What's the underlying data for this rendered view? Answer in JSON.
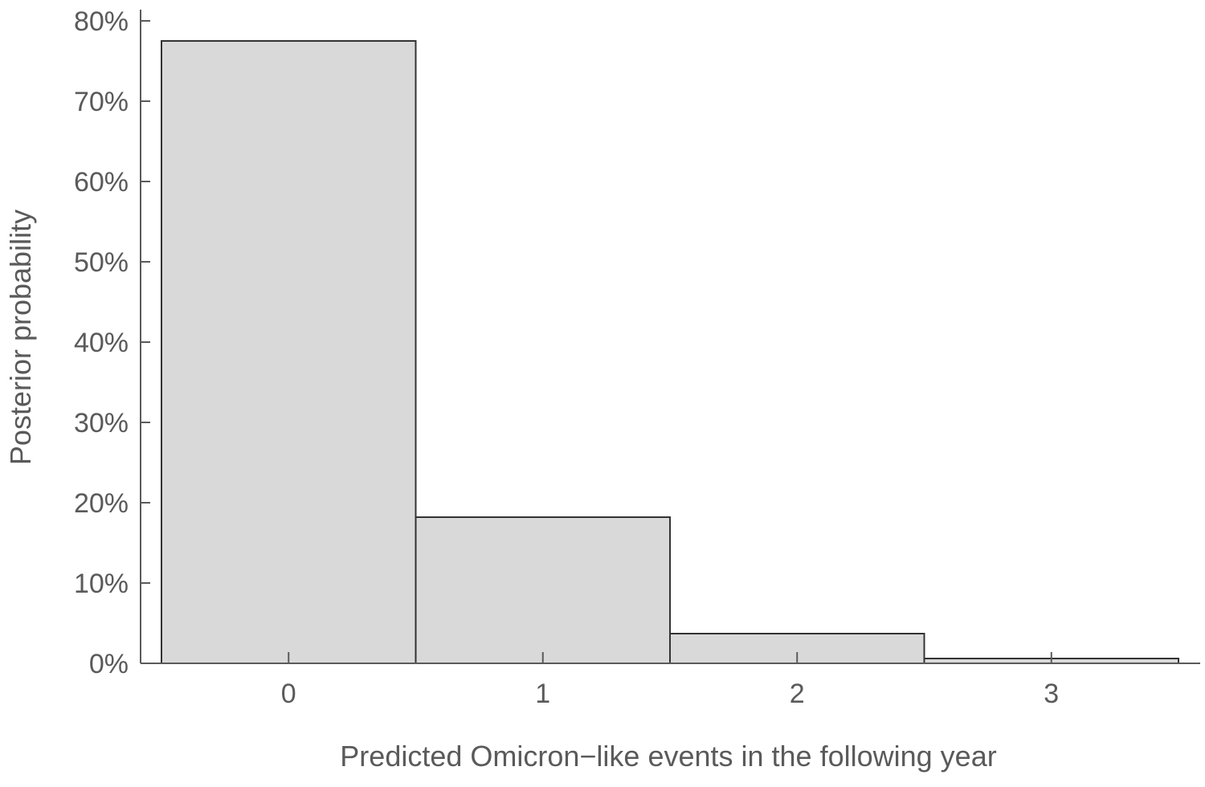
{
  "chart_data": {
    "type": "bar",
    "categories": [
      "0",
      "1",
      "2",
      "3"
    ],
    "values": [
      77.5,
      18.2,
      3.7,
      0.6
    ],
    "title": "",
    "xlabel": "Predicted Omicron−like events in the following year",
    "ylabel": "Posterior probability",
    "ylim": [
      0,
      80
    ],
    "y_ticks": [
      "0%",
      "10%",
      "20%",
      "30%",
      "40%",
      "50%",
      "60%",
      "70%",
      "80%"
    ],
    "y_tick_values": [
      0,
      10,
      20,
      30,
      40,
      50,
      60,
      70,
      80
    ],
    "grid": false,
    "legend": "none",
    "bar_color": "#d9d9d9",
    "bar_edge_color": "#333333"
  }
}
